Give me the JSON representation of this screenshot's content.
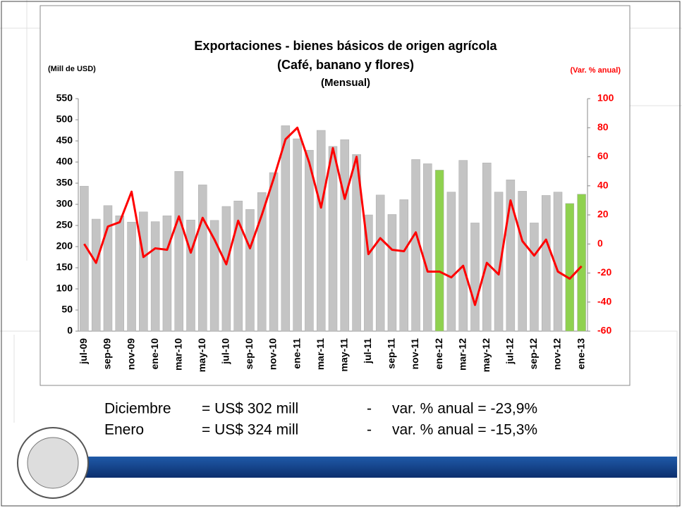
{
  "chart_data": {
    "type": "bar_line",
    "title": "Exportaciones - bienes básicos de origen agrícola",
    "subtitle": "(Café, banano y flores)",
    "subtitle2": "(Mensual)",
    "y_label": "(Mill de USD)",
    "y2_label": "(Var. % anual)",
    "categories": [
      "jul-09",
      null,
      "sep-09",
      null,
      "nov-09",
      null,
      "ene-10",
      null,
      "mar-10",
      null,
      "may-10",
      null,
      "jul-10",
      null,
      "sep-10",
      null,
      "nov-10",
      null,
      "ene-11",
      null,
      "mar-11",
      null,
      "may-11",
      null,
      "jul-11",
      null,
      "sep-11",
      null,
      "nov-11",
      null,
      "ene-12",
      null,
      "mar-12",
      null,
      "may-12",
      null,
      "jul-12",
      null,
      "sep-12",
      null,
      "nov-12",
      null,
      "ene-13"
    ],
    "series": [
      {
        "color": "#c4c4c4",
        "values": [
          343,
          265,
          297,
          273,
          258,
          282,
          259,
          273,
          378,
          263,
          346,
          262,
          295,
          308,
          288,
          328,
          375,
          486,
          455,
          428,
          475,
          437,
          453,
          418,
          275,
          322,
          276,
          311,
          406,
          396,
          381,
          329,
          404,
          256,
          398,
          329,
          358,
          331,
          256,
          321,
          329,
          302,
          324
        ],
        "bar_colors": [
          "#c4c4c4",
          "#c4c4c4",
          "#c4c4c4",
          "#c4c4c4",
          "#c4c4c4",
          "#c4c4c4",
          "#c4c4c4",
          "#c4c4c4",
          "#c4c4c4",
          "#c4c4c4",
          "#c4c4c4",
          "#c4c4c4",
          "#c4c4c4",
          "#c4c4c4",
          "#c4c4c4",
          "#c4c4c4",
          "#c4c4c4",
          "#c4c4c4",
          "#c4c4c4",
          "#c4c4c4",
          "#c4c4c4",
          "#c4c4c4",
          "#c4c4c4",
          "#c4c4c4",
          "#c4c4c4",
          "#c4c4c4",
          "#c4c4c4",
          "#c4c4c4",
          "#c4c4c4",
          "#c4c4c4",
          "#8fd14f",
          "#c4c4c4",
          "#c4c4c4",
          "#c4c4c4",
          "#c4c4c4",
          "#c4c4c4",
          "#c4c4c4",
          "#c4c4c4",
          "#c4c4c4",
          "#c4c4c4",
          "#c4c4c4",
          "#8fd14f",
          "#8fd14f"
        ]
      },
      {
        "color": "#ff0000",
        "axis": "y2",
        "values": [
          0,
          -13,
          12,
          15,
          36,
          -9,
          -3,
          -4,
          19,
          -6,
          18,
          3,
          -14,
          16,
          -3,
          20,
          45,
          72,
          80,
          56,
          25,
          66,
          31,
          60,
          -7,
          4,
          -4,
          -5,
          8,
          -19,
          -19,
          -23,
          -15,
          -42,
          -13,
          -21,
          30,
          2,
          -8,
          3,
          -19,
          -23.9,
          -15.3
        ]
      }
    ],
    "ylim": [
      0,
      550
    ],
    "yticks": [
      0,
      50,
      100,
      150,
      200,
      250,
      300,
      350,
      400,
      450,
      500,
      550
    ],
    "y2lim": [
      -60,
      100
    ],
    "y2ticks": [
      -60,
      -40,
      -20,
      0,
      20,
      40,
      60,
      80,
      100
    ],
    "y2_color": "#ff0000"
  },
  "summary": [
    [
      "Diciembre",
      "= US$ 302 mill",
      "-",
      "var. % anual  = -23,9%"
    ],
    [
      "Enero",
      "= US$ 324 mill",
      "-",
      "var. % anual  = -15,3%"
    ]
  ]
}
